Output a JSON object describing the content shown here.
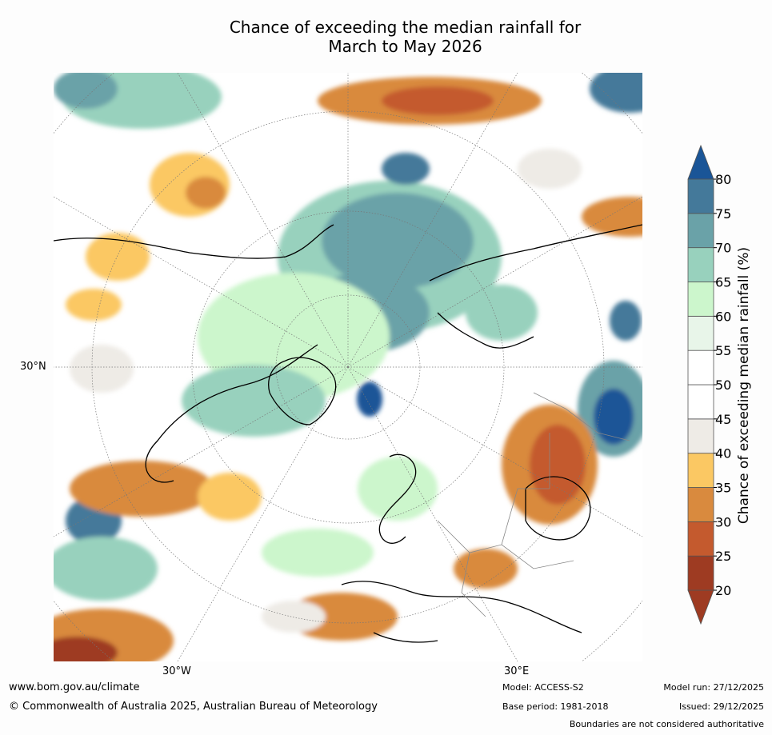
{
  "title": {
    "line1": "Chance of exceeding the median rainfall for",
    "line2": "March to May 2026"
  },
  "axes": {
    "lat_label": "30°N",
    "lon_labels": [
      "30°W",
      "30°E"
    ]
  },
  "colorbar": {
    "title": "Chance of exceeding median rainfall (%)",
    "ticks": [
      "20",
      "25",
      "30",
      "35",
      "40",
      "45",
      "50",
      "55",
      "60",
      "65",
      "70",
      "75",
      "80"
    ],
    "colors": [
      "#9e3b22",
      "#c45a2e",
      "#d98a3e",
      "#fbc863",
      "#eeebe6",
      "#ffffff",
      "#ffffff",
      "#e8f5e9",
      "#ccf6cc",
      "#98d1bd",
      "#6aa2a8",
      "#44799a",
      "#1a5597"
    ],
    "extend": "both"
  },
  "footer": {
    "website": "www.bom.gov.au/climate",
    "copyright": "© Commonwealth of Australia 2025, Australian Bureau of Meteorology",
    "model": "Model: ACCESS-S2",
    "base_period": "Base period: 1981-2018",
    "model_run": "Model run: 27/12/2025",
    "issued": "Issued: 29/12/2025",
    "disclaimer": "Boundaries are not considered authoritative"
  }
}
